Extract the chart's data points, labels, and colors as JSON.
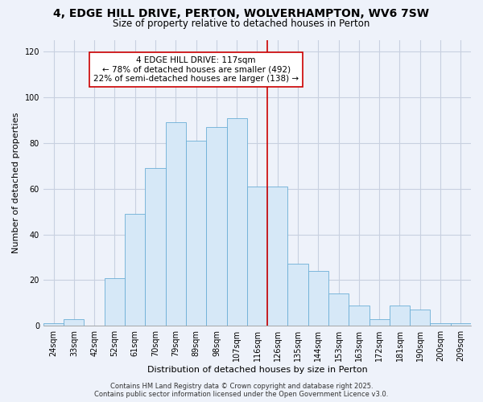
{
  "title": "4, EDGE HILL DRIVE, PERTON, WOLVERHAMPTON, WV6 7SW",
  "subtitle": "Size of property relative to detached houses in Perton",
  "xlabel": "Distribution of detached houses by size in Perton",
  "ylabel": "Number of detached properties",
  "annotation_line1": "4 EDGE HILL DRIVE: 117sqm",
  "annotation_line2": "← 78% of detached houses are smaller (492)",
  "annotation_line3": "22% of semi-detached houses are larger (138) →",
  "categories": [
    "24sqm",
    "33sqm",
    "42sqm",
    "52sqm",
    "61sqm",
    "70sqm",
    "79sqm",
    "89sqm",
    "98sqm",
    "107sqm",
    "116sqm",
    "126sqm",
    "135sqm",
    "144sqm",
    "153sqm",
    "163sqm",
    "172sqm",
    "181sqm",
    "190sqm",
    "200sqm",
    "209sqm"
  ],
  "values": [
    1,
    3,
    0,
    21,
    49,
    69,
    89,
    81,
    87,
    91,
    61,
    61,
    27,
    24,
    14,
    9,
    3,
    9,
    7,
    1,
    1
  ],
  "bar_color": "#d6e8f7",
  "bar_edge_color": "#6baed6",
  "vline_index": 10,
  "vline_color": "#cc0000",
  "ylim": [
    0,
    125
  ],
  "yticks": [
    0,
    20,
    40,
    60,
    80,
    100,
    120
  ],
  "background_color": "#eef2fa",
  "plot_bg_color": "#eef2fa",
  "annotation_box_color": "#ffffff",
  "annotation_border_color": "#cc0000",
  "grid_color": "#c8d0e0",
  "footer_text": "Contains HM Land Registry data © Crown copyright and database right 2025.\nContains public sector information licensed under the Open Government Licence v3.0.",
  "title_fontsize": 10,
  "subtitle_fontsize": 8.5,
  "axis_label_fontsize": 8,
  "tick_fontsize": 7,
  "annotation_fontsize": 7.5,
  "footer_fontsize": 6
}
